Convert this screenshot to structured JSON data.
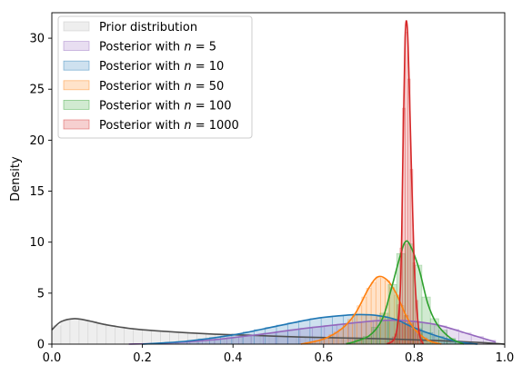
{
  "chart_data": {
    "type": "area",
    "title": "",
    "xlabel": "",
    "ylabel": "Density",
    "xlim": [
      0.0,
      1.0
    ],
    "ylim": [
      0,
      32.5
    ],
    "x_ticks": [
      "0.0",
      "0.2",
      "0.4",
      "0.6",
      "0.8",
      "1.0"
    ],
    "y_ticks": [
      "0",
      "5",
      "10",
      "15",
      "20",
      "25",
      "30"
    ],
    "legend_position": "upper-left",
    "grid": false,
    "series": [
      {
        "name": "Prior distribution",
        "color": "#505050",
        "fill": "#d9d9d9",
        "x": [
          0.0,
          0.02,
          0.05,
          0.08,
          0.12,
          0.18,
          0.25,
          0.35,
          0.45,
          0.55,
          0.65,
          0.75,
          0.85,
          0.95,
          1.0
        ],
        "y": [
          1.4,
          2.2,
          2.5,
          2.3,
          1.9,
          1.5,
          1.25,
          1.0,
          0.85,
          0.7,
          0.6,
          0.5,
          0.35,
          0.15,
          0.0
        ]
      },
      {
        "name": "Posterior with n = 5",
        "legend_prefix": "Posterior with ",
        "legend_n": "5",
        "color": "#9467bd",
        "fill": "#9467bd",
        "x": [
          0.17,
          0.25,
          0.35,
          0.45,
          0.55,
          0.65,
          0.72,
          0.78,
          0.85,
          0.92,
          0.98
        ],
        "y": [
          0.0,
          0.1,
          0.4,
          0.9,
          1.5,
          2.0,
          2.3,
          2.3,
          1.9,
          1.0,
          0.2
        ]
      },
      {
        "name": "Posterior with n = 10",
        "legend_prefix": "Posterior with ",
        "legend_n": "10",
        "color": "#1f77b4",
        "fill": "#1f77b4",
        "x": [
          0.2,
          0.3,
          0.4,
          0.5,
          0.58,
          0.64,
          0.68,
          0.72,
          0.76,
          0.8,
          0.85,
          0.9,
          0.94
        ],
        "y": [
          0.0,
          0.3,
          0.9,
          1.8,
          2.5,
          2.8,
          2.9,
          2.8,
          2.4,
          1.6,
          0.8,
          0.2,
          0.0
        ]
      },
      {
        "name": "Posterior with n = 50",
        "legend_prefix": "Posterior with ",
        "legend_n": "50",
        "color": "#ff7f0e",
        "fill": "#ff7f0e",
        "x": [
          0.55,
          0.6,
          0.64,
          0.67,
          0.7,
          0.72,
          0.74,
          0.76,
          0.78,
          0.8,
          0.83,
          0.86
        ],
        "y": [
          0.0,
          0.5,
          1.5,
          3.0,
          5.5,
          6.6,
          6.3,
          5.0,
          3.0,
          1.5,
          0.4,
          0.0
        ]
      },
      {
        "name": "Posterior with n = 100",
        "legend_prefix": "Posterior with ",
        "legend_n": "100",
        "color": "#2ca02c",
        "fill": "#2ca02c",
        "x": [
          0.65,
          0.7,
          0.73,
          0.75,
          0.77,
          0.78,
          0.79,
          0.81,
          0.83,
          0.85,
          0.88,
          0.91
        ],
        "y": [
          0.0,
          0.8,
          2.5,
          5.5,
          8.8,
          10.0,
          9.8,
          7.5,
          4.0,
          2.0,
          0.6,
          0.0
        ]
      },
      {
        "name": "Posterior with n = 1000",
        "legend_prefix": "Posterior with ",
        "legend_n": "1000",
        "color": "#d62728",
        "fill": "#d62728",
        "x": [
          0.74,
          0.76,
          0.77,
          0.775,
          0.78,
          0.785,
          0.79,
          0.8,
          0.81,
          0.82
        ],
        "y": [
          0.0,
          1.0,
          6.0,
          18.0,
          30.0,
          31.0,
          24.0,
          8.0,
          1.5,
          0.0
        ]
      }
    ]
  }
}
